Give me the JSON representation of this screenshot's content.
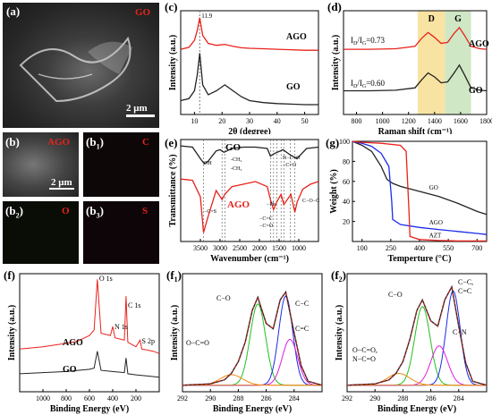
{
  "labels": {
    "a": "(a)",
    "b": "(b)",
    "b1": "(b",
    "b2": "(b",
    "b3": "(b",
    "b1sub": "1",
    "b2sub": "2",
    "b3sub": "3",
    "c": "(c)",
    "d": "(d)",
    "e": "(e)",
    "f": "(f)",
    "f1": "(f",
    "f2": "(f",
    "f1sub": "1",
    "f2sub": "2",
    "g": "(g)"
  },
  "micro": {
    "a_tag": "GO",
    "a_scale": "2 μm",
    "b_tag": "AGO",
    "b_scale": "2 μm",
    "b1_tag": "C",
    "b2_tag": "O",
    "b3_tag": "S"
  },
  "colors": {
    "red": "#e8221b",
    "black": "#222222",
    "green": "#22c11b",
    "blue": "#1b2be8",
    "orange": "#f08a1a",
    "magenta": "#e01be0",
    "band_yellow": "#f9e3a3",
    "band_green": "#cfe7c5"
  },
  "chart_data": [
    {
      "panel": "c",
      "type": "line",
      "xlabel": "2θ (degree)",
      "ylabel": "Intensity (a.u.)",
      "xlim": [
        5,
        55
      ],
      "xticks": [
        10,
        20,
        30,
        40,
        50
      ],
      "annotation": "11.9",
      "series": [
        {
          "name": "AGO",
          "x": [
            5,
            8,
            10,
            11,
            11.9,
            13,
            15,
            18,
            21,
            24,
            27,
            30,
            35,
            40,
            45,
            50,
            55
          ],
          "y": [
            0.66,
            0.68,
            0.75,
            0.85,
            0.98,
            0.8,
            0.72,
            0.7,
            0.71,
            0.69,
            0.675,
            0.67,
            0.665,
            0.66,
            0.655,
            0.65,
            0.65
          ]
        },
        {
          "name": "GO",
          "x": [
            5,
            8,
            10,
            11,
            11.9,
            13,
            15,
            18,
            21,
            24,
            27,
            30,
            35,
            40,
            45,
            50,
            55
          ],
          "y": [
            0.14,
            0.16,
            0.24,
            0.4,
            0.62,
            0.3,
            0.2,
            0.24,
            0.3,
            0.24,
            0.18,
            0.14,
            0.12,
            0.11,
            0.105,
            0.1,
            0.1
          ]
        }
      ]
    },
    {
      "panel": "d",
      "type": "line",
      "xlabel": "Raman shift (cm⁻¹)",
      "ylabel": "Intensity (a.u.)",
      "xlim": [
        700,
        1800
      ],
      "xticks": [
        800,
        1000,
        1200,
        1400,
        1600,
        1800
      ],
      "bands": [
        {
          "label": "D",
          "from": 1270,
          "to": 1480
        },
        {
          "label": "G",
          "from": 1480,
          "to": 1680
        }
      ],
      "ratios": [
        {
          "text": "I",
          "sub1": "D",
          "mid": "/I",
          "sub2": "G",
          "val": "=0.73"
        },
        {
          "text": "I",
          "sub1": "D",
          "mid": "/I",
          "sub2": "G",
          "val": "=0.60"
        }
      ],
      "series": [
        {
          "name": "AGO",
          "x": [
            700,
            900,
            1100,
            1250,
            1300,
            1350,
            1400,
            1450,
            1500,
            1550,
            1590,
            1630,
            1680,
            1750,
            1800
          ],
          "y": [
            0.66,
            0.66,
            0.665,
            0.69,
            0.77,
            0.83,
            0.78,
            0.72,
            0.73,
            0.82,
            0.88,
            0.8,
            0.69,
            0.665,
            0.66
          ]
        },
        {
          "name": "GO",
          "x": [
            700,
            900,
            1100,
            1250,
            1300,
            1350,
            1400,
            1450,
            1500,
            1550,
            1590,
            1630,
            1680,
            1750,
            1800
          ],
          "y": [
            0.24,
            0.24,
            0.245,
            0.27,
            0.35,
            0.42,
            0.38,
            0.32,
            0.33,
            0.42,
            0.5,
            0.4,
            0.27,
            0.245,
            0.24
          ]
        }
      ]
    },
    {
      "panel": "e",
      "type": "line",
      "xlabel": "Wavenumber (cm⁻¹)",
      "ylabel": "Transmittance (%)",
      "xlim": [
        4000,
        500
      ],
      "xticks": [
        3500,
        3000,
        2500,
        2000,
        1500,
        1000
      ],
      "annotations": [
        "OH",
        "-CH₃",
        "-CH₂",
        "N−C=O",
        "−C=O",
        "−C=S",
        "−Ph",
        "−C=C",
        "−C=O",
        "C−O−C"
      ],
      "series": [
        {
          "name": "GO",
          "x": [
            4000,
            3700,
            3500,
            3400,
            3300,
            3100,
            3000,
            2900,
            2700,
            2400,
            2100,
            1800,
            1720,
            1620,
            1400,
            1220,
            1050,
            800,
            500
          ],
          "y": [
            0.9,
            0.89,
            0.8,
            0.76,
            0.78,
            0.86,
            0.87,
            0.85,
            0.88,
            0.89,
            0.89,
            0.88,
            0.82,
            0.84,
            0.87,
            0.83,
            0.8,
            0.88,
            0.89
          ]
        },
        {
          "name": "AGO",
          "x": [
            4000,
            3700,
            3500,
            3420,
            3300,
            3100,
            2950,
            2880,
            2700,
            2400,
            2100,
            1800,
            1720,
            1640,
            1560,
            1450,
            1380,
            1200,
            1100,
            1040,
            900,
            700,
            500
          ],
          "y": [
            0.64,
            0.63,
            0.5,
            0.22,
            0.35,
            0.55,
            0.48,
            0.52,
            0.58,
            0.6,
            0.62,
            0.58,
            0.48,
            0.4,
            0.46,
            0.52,
            0.44,
            0.52,
            0.38,
            0.46,
            0.56,
            0.6,
            0.62
          ]
        }
      ]
    },
    {
      "panel": "g",
      "type": "line",
      "xlabel": "Temperture (°C)",
      "ylabel": "Weight (%)",
      "xlim": [
        50,
        750
      ],
      "xticks": [
        100,
        250,
        400,
        550,
        700
      ],
      "yticks": [
        20,
        40,
        60,
        80,
        100
      ],
      "ylim": [
        0,
        100
      ],
      "series": [
        {
          "name": "GO",
          "x": [
            50,
            100,
            150,
            200,
            230,
            260,
            300,
            400,
            500,
            600,
            700,
            750
          ],
          "y": [
            100,
            96,
            90,
            75,
            62,
            58,
            55,
            50,
            45,
            38,
            30,
            27
          ]
        },
        {
          "name": "AGO",
          "x": [
            50,
            100,
            150,
            200,
            240,
            255,
            260,
            300,
            400,
            500,
            600,
            700,
            750
          ],
          "y": [
            100,
            98,
            95,
            88,
            75,
            40,
            22,
            17,
            14,
            12,
            10,
            8,
            7
          ]
        },
        {
          "name": "AZT",
          "x": [
            50,
            100,
            200,
            300,
            330,
            345,
            350,
            400,
            500,
            600,
            700,
            750
          ],
          "y": [
            100,
            99,
            98,
            96,
            90,
            30,
            5,
            2,
            1,
            0.5,
            0.5,
            0.5
          ]
        }
      ]
    },
    {
      "panel": "f",
      "type": "line",
      "xlabel": "Binding Energy (eV)",
      "ylabel": "Intensity (a.u.)",
      "xlim": [
        1200,
        0
      ],
      "xticks": [
        1000,
        800,
        600,
        400,
        200
      ],
      "peaks": [
        "O 1s",
        "N 1s",
        "C 1s",
        "S 2p"
      ],
      "series": [
        {
          "name": "AGO",
          "x": [
            1200,
            1000,
            800,
            700,
            600,
            560,
            532,
            500,
            420,
            400,
            380,
            300,
            285,
            270,
            200,
            165,
            150,
            50,
            0
          ],
          "y": [
            0.38,
            0.4,
            0.43,
            0.45,
            0.5,
            0.55,
            1.0,
            0.52,
            0.5,
            0.58,
            0.48,
            0.46,
            0.85,
            0.44,
            0.4,
            0.46,
            0.38,
            0.36,
            0.34
          ]
        },
        {
          "name": "GO",
          "x": [
            1200,
            1000,
            800,
            700,
            600,
            560,
            532,
            500,
            400,
            300,
            285,
            270,
            200,
            100,
            0
          ],
          "y": [
            0.16,
            0.17,
            0.18,
            0.19,
            0.2,
            0.21,
            0.36,
            0.19,
            0.18,
            0.17,
            0.3,
            0.16,
            0.15,
            0.14,
            0.13
          ]
        }
      ]
    },
    {
      "panel": "f1",
      "type": "line",
      "xlabel": "Binding Energy (eV)",
      "ylabel": "Intensity (a.u.)",
      "xlim": [
        292,
        282
      ],
      "xticks": [
        292,
        290,
        288,
        286,
        284
      ],
      "components": [
        "C−O",
        "C−C",
        "C=C",
        "O−C=O"
      ],
      "series": [
        {
          "name": "envelope",
          "x": [
            292,
            290,
            289,
            288.5,
            288,
            287.5,
            287,
            286.6,
            286,
            285.5,
            285,
            284.6,
            284,
            283.5,
            283,
            282
          ],
          "y": [
            0.15,
            0.16,
            0.19,
            0.24,
            0.33,
            0.48,
            0.72,
            0.82,
            0.62,
            0.58,
            0.8,
            0.86,
            0.55,
            0.3,
            0.18,
            0.15
          ]
        }
      ]
    },
    {
      "panel": "f2",
      "type": "line",
      "xlabel": "Binding Energy (eV)",
      "ylabel": "Intensity (a.u.)",
      "xlim": [
        292,
        282
      ],
      "xticks": [
        292,
        290,
        288,
        286,
        284
      ],
      "components": [
        "C−O",
        "C−C,",
        "C=C",
        "C−N",
        "O−C=O,",
        "N−C=O"
      ],
      "series": [
        {
          "name": "envelope",
          "x": [
            292,
            290,
            289,
            288.5,
            288,
            287.5,
            287,
            286.6,
            286,
            285.5,
            285,
            284.5,
            284,
            283.5,
            283,
            282
          ],
          "y": [
            0.15,
            0.16,
            0.19,
            0.24,
            0.33,
            0.5,
            0.72,
            0.8,
            0.64,
            0.6,
            0.8,
            0.9,
            0.6,
            0.32,
            0.18,
            0.15
          ]
        }
      ]
    }
  ]
}
